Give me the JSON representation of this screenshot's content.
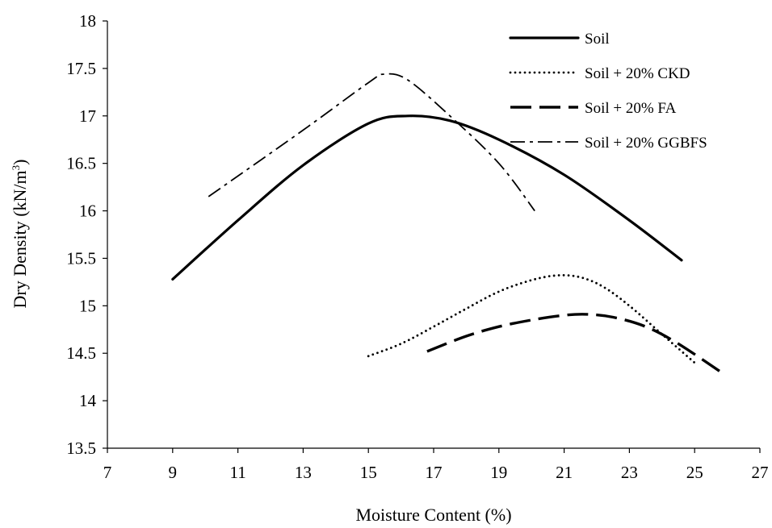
{
  "chart_data": {
    "type": "line",
    "title": "",
    "xlabel": "Moisture Content (%)",
    "ylabel": "Dry Density (kN/m",
    "ylabel_superscript": "3",
    "ylabel_suffix": ")",
    "xlim": [
      7,
      27
    ],
    "ylim": [
      13.5,
      18
    ],
    "x_ticks": [
      7,
      9,
      11,
      13,
      15,
      17,
      19,
      21,
      23,
      25,
      27
    ],
    "y_ticks": [
      13.5,
      14,
      14.5,
      15,
      15.5,
      16,
      16.5,
      17,
      17.5,
      18
    ],
    "grid": false,
    "legend_position": "top-right",
    "series": [
      {
        "name": "Soil",
        "style": "solid",
        "x": [
          9,
          11,
          13,
          15,
          16.2,
          17.5,
          19,
          21,
          23,
          24.6
        ],
        "y": [
          15.28,
          15.9,
          16.48,
          16.92,
          17.0,
          16.95,
          16.75,
          16.38,
          15.9,
          15.48
        ]
      },
      {
        "name": "Soil + 20% CKD",
        "style": "dotted",
        "x": [
          15,
          16,
          17,
          18,
          19,
          20,
          20.8,
          21.5,
          22.2,
          23,
          24,
          25
        ],
        "y": [
          14.47,
          14.6,
          14.78,
          14.97,
          15.15,
          15.27,
          15.32,
          15.3,
          15.2,
          15.0,
          14.7,
          14.4
        ]
      },
      {
        "name": "Soil + 20% FA",
        "style": "dashed",
        "x": [
          16.8,
          18,
          19,
          20,
          21,
          21.7,
          22.5,
          23.5,
          24.5,
          25.9
        ],
        "y": [
          14.52,
          14.68,
          14.78,
          14.85,
          14.9,
          14.91,
          14.88,
          14.78,
          14.6,
          14.28
        ]
      },
      {
        "name": "Soil + 20% GGBFS",
        "style": "dash-dot",
        "x": [
          10.1,
          13,
          15,
          15.5,
          16.2,
          17.5,
          19,
          20.1
        ],
        "y": [
          16.15,
          16.85,
          17.35,
          17.44,
          17.38,
          17.0,
          16.5,
          16.0
        ]
      }
    ]
  }
}
